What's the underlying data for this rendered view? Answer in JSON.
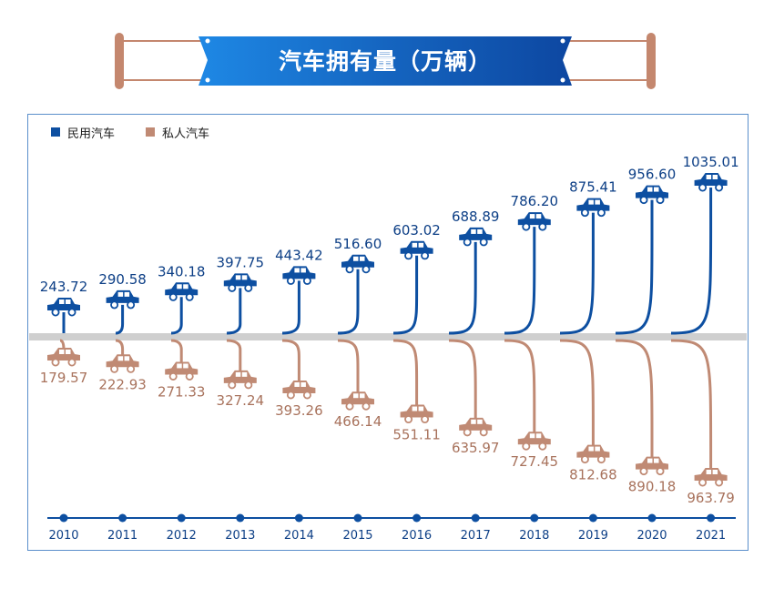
{
  "title": "汽车拥有量（万辆）",
  "colors": {
    "civil": "#0d4fa1",
    "private": "#c08a74",
    "banner": "#1565c0",
    "frame": "#c4876e",
    "axis": "#cfcfcf",
    "timeline": "#0d4fa1",
    "civil_label": "#0d3f86",
    "private_label": "#a8725c"
  },
  "legend": [
    {
      "name": "民用汽车",
      "color": "#0d4fa1"
    },
    {
      "name": "私人汽车",
      "color": "#c08a74"
    }
  ],
  "chart_data": {
    "type": "line",
    "title": "汽车拥有量（万辆）",
    "categories": [
      "2010",
      "2011",
      "2012",
      "2013",
      "2014",
      "2015",
      "2016",
      "2017",
      "2018",
      "2019",
      "2020",
      "2021"
    ],
    "series": [
      {
        "name": "民用汽车",
        "values": [
          "243.72",
          "290.58",
          "340.18",
          "397.75",
          "443.42",
          "516.60",
          "603.02",
          "688.89",
          "786.20",
          "875.41",
          "956.60",
          "1035.01"
        ]
      },
      {
        "name": "私人汽车",
        "values": [
          "179.57",
          "222.93",
          "271.33",
          "327.24",
          "393.26",
          "466.14",
          "551.11",
          "635.97",
          "727.45",
          "812.68",
          "890.18",
          "963.79"
        ]
      }
    ],
    "grid": false,
    "legend_position": "top-left"
  }
}
